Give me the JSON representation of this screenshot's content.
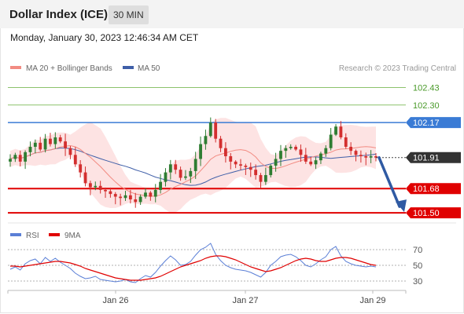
{
  "header": {
    "title": "Dollar Index (ICE)",
    "interval": "30 MIN",
    "datetime": "Monday, January 30, 2023 12:46:34 AM CET"
  },
  "legend": {
    "ma20": "MA 20 + Bollinger Bands",
    "ma50": "MA 50",
    "credit": "Research © 2023 Trading Central"
  },
  "rsi_legend": {
    "rsi": "RSI",
    "ma9": "9MA"
  },
  "colors": {
    "candle_up": "#2e7d32",
    "candle_down": "#d32f2f",
    "bollinger_fill": "#fde3e3",
    "ma20": "#f28b82",
    "ma50": "#3f5fa8",
    "support": "#e00000",
    "target_green": "#8cc26c",
    "pivot": "#3a7bd5",
    "arrow": "#2f5aa3",
    "rsi": "#5b7fd6",
    "rsi_ma": "#e00000"
  },
  "chart_data": {
    "type": "candlestick",
    "ylim": [
      101.46,
      102.52
    ],
    "x_ticks": [
      "Jan 26",
      "Jan 27",
      "Jan 29"
    ],
    "last_price": 101.91,
    "levels": [
      {
        "value": 102.43,
        "label": "102.43",
        "kind": "resistance"
      },
      {
        "value": 102.3,
        "label": "102.30",
        "kind": "resistance"
      },
      {
        "value": 102.17,
        "label": "102.17",
        "kind": "pivot"
      },
      {
        "value": 101.68,
        "label": "101.68",
        "kind": "support"
      },
      {
        "value": 101.5,
        "label": "101.50",
        "kind": "support"
      }
    ],
    "forecast": {
      "from": 101.91,
      "to": 101.5,
      "direction": "down"
    },
    "closes": [
      101.9,
      101.93,
      101.88,
      101.95,
      101.99,
      102.02,
      101.97,
      102.05,
      102.01,
      102.06,
      102.03,
      101.98,
      101.93,
      101.86,
      101.8,
      101.72,
      101.69,
      101.7,
      101.67,
      101.66,
      101.64,
      101.62,
      101.61,
      101.63,
      101.6,
      101.58,
      101.62,
      101.65,
      101.62,
      101.67,
      101.73,
      101.8,
      101.86,
      101.82,
      101.76,
      101.77,
      101.81,
      101.9,
      102.01,
      102.07,
      102.17,
      102.05,
      101.98,
      101.92,
      101.88,
      101.86,
      101.85,
      101.84,
      101.82,
      101.78,
      101.73,
      101.78,
      101.85,
      101.9,
      101.96,
      101.98,
      101.99,
      101.97,
      101.93,
      101.88,
      101.86,
      101.89,
      101.94,
      101.98,
      102.08,
      102.14,
      102.06,
      101.99,
      101.96,
      101.93,
      101.92,
      101.91,
      101.92,
      101.91
    ],
    "rsi": {
      "ylim": [
        20,
        80
      ],
      "ticks": [
        70,
        50,
        30
      ],
      "values": [
        45,
        48,
        44,
        52,
        56,
        58,
        52,
        60,
        55,
        59,
        54,
        50,
        46,
        40,
        36,
        33,
        34,
        36,
        32,
        31,
        30,
        29,
        30,
        32,
        29,
        28,
        33,
        37,
        35,
        41,
        49,
        56,
        62,
        57,
        50,
        51,
        55,
        63,
        70,
        73,
        78,
        64,
        56,
        50,
        47,
        45,
        44,
        43,
        41,
        38,
        35,
        41,
        50,
        55,
        61,
        63,
        64,
        61,
        56,
        50,
        48,
        52,
        57,
        61,
        70,
        74,
        62,
        55,
        52,
        50,
        49,
        48,
        49,
        48
      ],
      "ma": [
        49,
        49,
        48,
        49,
        50,
        51,
        52,
        53,
        54,
        55,
        55,
        54,
        53,
        51,
        49,
        46,
        44,
        42,
        40,
        38,
        36,
        34,
        33,
        32,
        31,
        31,
        31,
        32,
        33,
        34,
        36,
        39,
        42,
        45,
        48,
        50,
        52,
        54,
        56,
        59,
        61,
        62,
        62,
        61,
        59,
        57,
        54,
        51,
        48,
        46,
        44,
        42,
        43,
        45,
        47,
        50,
        53,
        56,
        58,
        59,
        58,
        56,
        55,
        55,
        57,
        59,
        60,
        60,
        59,
        57,
        55,
        53,
        51,
        50
      ]
    }
  }
}
